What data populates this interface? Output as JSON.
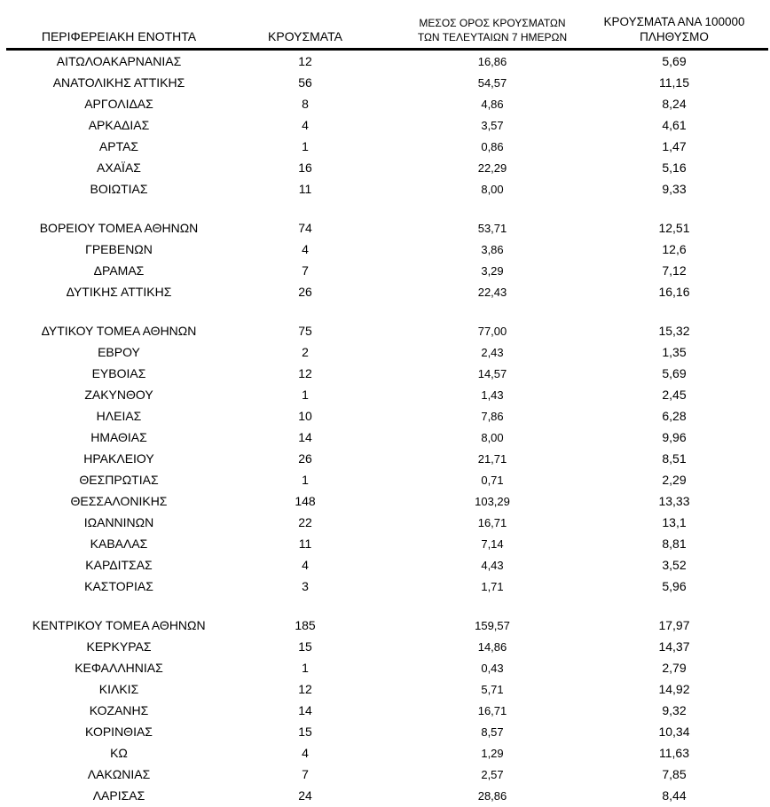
{
  "table": {
    "columns": {
      "region": "ΠΕΡΙΦΕΡΕΙΑΚΗ ΕΝΟΤΗΤΑ",
      "cases": "ΚΡΟΥΣΜΑΤΑ",
      "avg7_line1": "ΜΕΣΟΣ ΟΡΟΣ ΚΡΟΥΣΜΑΤΩΝ",
      "avg7_line2": "ΤΩΝ ΤΕΛΕΥΤΑΙΩΝ 7 ΗΜΕΡΩΝ",
      "per100k_line1": "ΚΡΟΥΣΜΑΤΑ ΑΝΑ 100000",
      "per100k_line2": "ΠΛΗΘΥΣΜΟ"
    },
    "rows": [
      {
        "region": "ΑΙΤΩΛΟΑΚΑΡΝΑΝΙΑΣ",
        "cases": "12",
        "avg_7day": "16,86",
        "per_100k": "5,69"
      },
      {
        "region": "ΑΝΑΤΟΛΙΚΗΣ ΑΤΤΙΚΗΣ",
        "cases": "56",
        "avg_7day": "54,57",
        "per_100k": "11,15"
      },
      {
        "region": "ΑΡΓΟΛΙΔΑΣ",
        "cases": "8",
        "avg_7day": "4,86",
        "per_100k": "8,24"
      },
      {
        "region": "ΑΡΚΑΔΙΑΣ",
        "cases": "4",
        "avg_7day": "3,57",
        "per_100k": "4,61"
      },
      {
        "region": "ΑΡΤΑΣ",
        "cases": "1",
        "avg_7day": "0,86",
        "per_100k": "1,47"
      },
      {
        "region": "ΑΧΑΪΑΣ",
        "cases": "16",
        "avg_7day": "22,29",
        "per_100k": "5,16"
      },
      {
        "region": "ΒΟΙΩΤΙΑΣ",
        "cases": "11",
        "avg_7day": "8,00",
        "per_100k": "9,33"
      },
      {
        "region": "ΒΟΡΕΙΟΥ ΤΟΜΕΑ ΑΘΗΝΩΝ",
        "cases": "74",
        "avg_7day": "53,71",
        "per_100k": "12,51"
      },
      {
        "region": "ΓΡΕΒΕΝΩΝ",
        "cases": "4",
        "avg_7day": "3,86",
        "per_100k": "12,6"
      },
      {
        "region": "ΔΡΑΜΑΣ",
        "cases": "7",
        "avg_7day": "3,29",
        "per_100k": "7,12"
      },
      {
        "region": "ΔΥΤΙΚΗΣ ΑΤΤΙΚΗΣ",
        "cases": "26",
        "avg_7day": "22,43",
        "per_100k": "16,16"
      },
      {
        "region": "ΔΥΤΙΚΟΥ ΤΟΜΕΑ ΑΘΗΝΩΝ",
        "cases": "75",
        "avg_7day": "77,00",
        "per_100k": "15,32"
      },
      {
        "region": "ΕΒΡΟΥ",
        "cases": "2",
        "avg_7day": "2,43",
        "per_100k": "1,35"
      },
      {
        "region": "ΕΥΒΟΙΑΣ",
        "cases": "12",
        "avg_7day": "14,57",
        "per_100k": "5,69"
      },
      {
        "region": "ΖΑΚΥΝΘΟΥ",
        "cases": "1",
        "avg_7day": "1,43",
        "per_100k": "2,45"
      },
      {
        "region": "ΗΛΕΙΑΣ",
        "cases": "10",
        "avg_7day": "7,86",
        "per_100k": "6,28"
      },
      {
        "region": "ΗΜΑΘΙΑΣ",
        "cases": "14",
        "avg_7day": "8,00",
        "per_100k": "9,96"
      },
      {
        "region": "ΗΡΑΚΛΕΙΟΥ",
        "cases": "26",
        "avg_7day": "21,71",
        "per_100k": "8,51"
      },
      {
        "region": "ΘΕΣΠΡΩΤΙΑΣ",
        "cases": "1",
        "avg_7day": "0,71",
        "per_100k": "2,29"
      },
      {
        "region": "ΘΕΣΣΑΛΟΝΙΚΗΣ",
        "cases": "148",
        "avg_7day": "103,29",
        "per_100k": "13,33"
      },
      {
        "region": "ΙΩΑΝΝΙΝΩΝ",
        "cases": "22",
        "avg_7day": "16,71",
        "per_100k": "13,1"
      },
      {
        "region": "ΚΑΒΑΛΑΣ",
        "cases": "11",
        "avg_7day": "7,14",
        "per_100k": "8,81"
      },
      {
        "region": "ΚΑΡΔΙΤΣΑΣ",
        "cases": "4",
        "avg_7day": "4,43",
        "per_100k": "3,52"
      },
      {
        "region": "ΚΑΣΤΟΡΙΑΣ",
        "cases": "3",
        "avg_7day": "1,71",
        "per_100k": "5,96"
      },
      {
        "region": "ΚΕΝΤΡΙΚΟΥ ΤΟΜΕΑ ΑΘΗΝΩΝ",
        "cases": "185",
        "avg_7day": "159,57",
        "per_100k": "17,97"
      },
      {
        "region": "ΚΕΡΚΥΡΑΣ",
        "cases": "15",
        "avg_7day": "14,86",
        "per_100k": "14,37"
      },
      {
        "region": "ΚΕΦΑΛΛΗΝΙΑΣ",
        "cases": "1",
        "avg_7day": "0,43",
        "per_100k": "2,79"
      },
      {
        "region": "ΚΙΛΚΙΣ",
        "cases": "12",
        "avg_7day": "5,71",
        "per_100k": "14,92"
      },
      {
        "region": "ΚΟΖΑΝΗΣ",
        "cases": "14",
        "avg_7day": "16,71",
        "per_100k": "9,32"
      },
      {
        "region": "ΚΟΡΙΝΘΙΑΣ",
        "cases": "15",
        "avg_7day": "8,57",
        "per_100k": "10,34"
      },
      {
        "region": "ΚΩ",
        "cases": "4",
        "avg_7day": "1,29",
        "per_100k": "11,63"
      },
      {
        "region": "ΛΑΚΩΝΙΑΣ",
        "cases": "7",
        "avg_7day": "2,57",
        "per_100k": "7,85"
      },
      {
        "region": "ΛΑΡΙΣΑΣ",
        "cases": "24",
        "avg_7day": "28,86",
        "per_100k": "8,44"
      }
    ],
    "group_breaks_after": [
      7,
      11,
      24
    ]
  },
  "colors": {
    "background": "#ffffff",
    "text": "#000000",
    "header_rule": "#000000"
  }
}
